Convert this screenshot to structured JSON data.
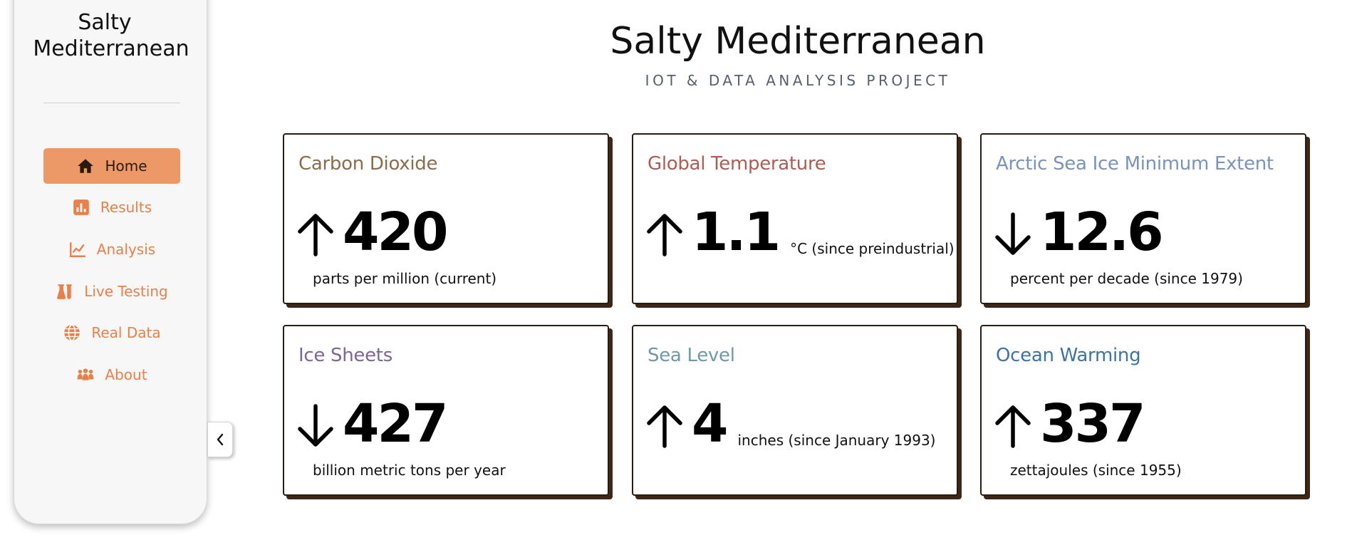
{
  "sidebar": {
    "brand_line1": "Salty",
    "brand_line2": "Mediterranean",
    "items": [
      {
        "label": "Home",
        "icon": "home-icon",
        "active": true
      },
      {
        "label": "Results",
        "icon": "bar-chart-icon"
      },
      {
        "label": "Analysis",
        "icon": "line-chart-icon"
      },
      {
        "label": "Live Testing",
        "icon": "flask-icon"
      },
      {
        "label": "Real Data",
        "icon": "globe-icon"
      },
      {
        "label": "About",
        "icon": "people-icon"
      }
    ],
    "collapse_icon": "chevron-left-icon"
  },
  "header": {
    "title": "Salty Mediterranean",
    "subtitle": "IOT & DATA ANALYSIS PROJECT"
  },
  "colors": {
    "accent": "#ec9867",
    "nav_text": "#e8804a",
    "carbon_title": "#8c6c4a",
    "temperature_title": "#b05c55",
    "arctic_title": "#7a93bc",
    "icesheets_title": "#7d6697",
    "sealevel_title": "#6f98a8",
    "ocean_title": "#3f73a1"
  },
  "cards": [
    {
      "title": "Carbon Dioxide",
      "direction": "up",
      "value": "420",
      "unit": "parts per million (current)",
      "unit_position": "below"
    },
    {
      "title": "Global Temperature",
      "direction": "up",
      "value": "1.1",
      "unit": "°C (since preindustrial)",
      "unit_position": "inline"
    },
    {
      "title": "Arctic Sea Ice Minimum Extent",
      "direction": "down",
      "value": "12.6",
      "unit": "percent per decade (since 1979)",
      "unit_position": "below"
    },
    {
      "title": "Ice Sheets",
      "direction": "down",
      "value": "427",
      "unit": "billion metric tons per year",
      "unit_position": "below"
    },
    {
      "title": "Sea Level",
      "direction": "up",
      "value": "4",
      "unit": "inches (since January 1993)",
      "unit_position": "inline"
    },
    {
      "title": "Ocean Warming",
      "direction": "up",
      "value": "337",
      "unit": "zettajoules (since 1955)",
      "unit_position": "below"
    }
  ]
}
